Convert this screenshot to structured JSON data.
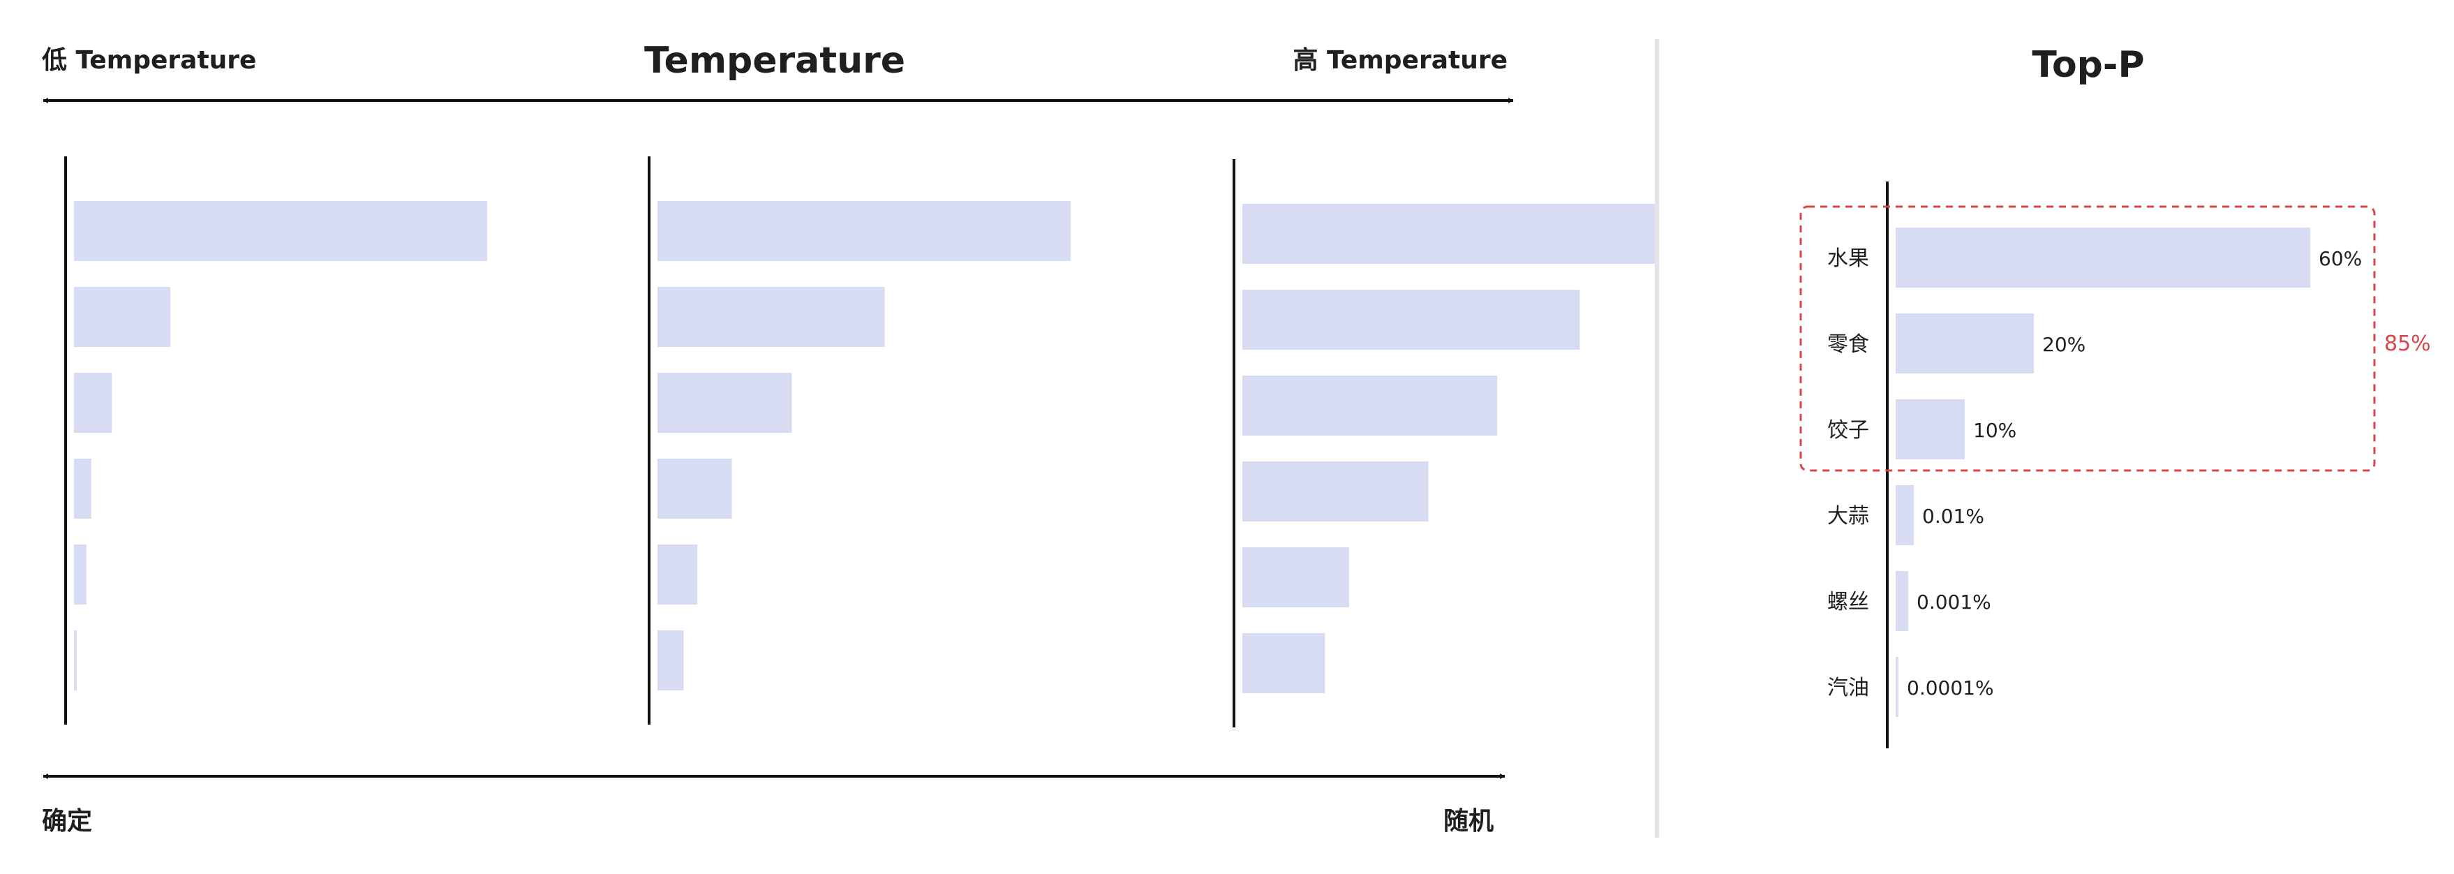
{
  "temperature_panel": {
    "title": "Temperature",
    "low_label": "低 Temperature",
    "high_label": "高 Temperature",
    "bottom_left_label": "确定",
    "bottom_right_label": "随机",
    "distributions": [
      {
        "values": [
          0.6,
          0.14,
          0.055,
          0.025,
          0.018,
          0.004
        ]
      },
      {
        "values": [
          0.6,
          0.33,
          0.195,
          0.108,
          0.058,
          0.038
        ]
      },
      {
        "values": [
          0.6,
          0.49,
          0.37,
          0.27,
          0.155,
          0.12
        ]
      }
    ]
  },
  "topp_panel": {
    "title": "Top-P",
    "categories": [
      "水果",
      "零食",
      "饺子",
      "大蒜",
      "螺丝",
      "汽油"
    ],
    "value_labels": [
      "60%",
      "20%",
      "10%",
      "0.01%",
      "0.001%",
      "0.0001%"
    ],
    "values": [
      0.6,
      0.2,
      0.1,
      0.0001,
      1e-05,
      1e-06
    ],
    "cutoff_label": "85%",
    "cutoff_color": "#d9434a"
  },
  "colors": {
    "bar": "#d7dcf2",
    "text": "#1f1f1f",
    "axis": "#111111",
    "divider": "#e4e4e4"
  }
}
